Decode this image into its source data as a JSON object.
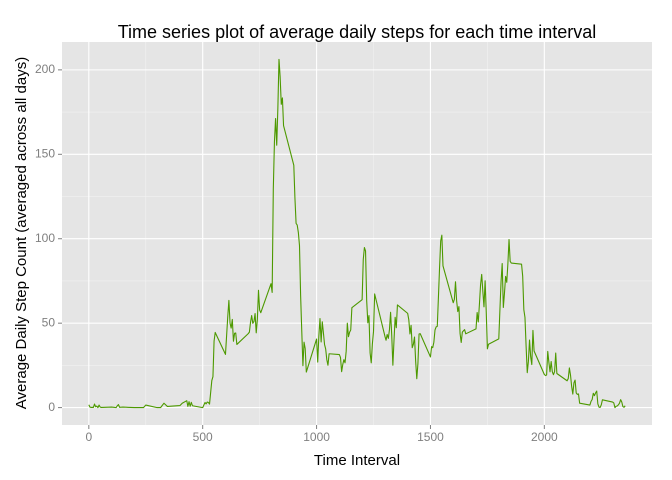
{
  "chart_data": {
    "type": "line",
    "title": "Time series plot of average daily steps for each time interval",
    "x_label": "Time Interval",
    "y_label": "Average Daily Step Count (averaged across all days)",
    "xlim": [
      -117.75,
      2472.75
    ],
    "ylim": [
      -10.3,
      216.5
    ],
    "xticks": [
      0,
      500,
      1000,
      1500,
      2000
    ],
    "yticks": [
      0,
      50,
      100,
      150,
      200
    ],
    "grid": true,
    "series": [
      {
        "color": "#4d9900",
        "x": [
          0,
          5,
          10,
          15,
          20,
          25,
          30,
          35,
          40,
          45,
          50,
          55,
          100,
          110,
          120,
          125,
          130,
          135,
          150,
          200,
          230,
          240,
          250,
          300,
          315,
          330,
          345,
          400,
          410,
          430,
          435,
          440,
          445,
          450,
          455,
          500,
          510,
          515,
          520,
          525,
          530,
          540,
          545,
          550,
          555,
          600,
          610,
          615,
          620,
          625,
          630,
          635,
          640,
          645,
          650,
          700,
          705,
          710,
          715,
          720,
          725,
          730,
          735,
          740,
          745,
          750,
          755,
          800,
          805,
          810,
          815,
          820,
          825,
          830,
          835,
          840,
          845,
          850,
          855,
          900,
          905,
          910,
          915,
          920,
          925,
          930,
          935,
          940,
          945,
          950,
          955,
          1000,
          1005,
          1010,
          1015,
          1020,
          1025,
          1030,
          1035,
          1040,
          1045,
          1050,
          1055,
          1100,
          1105,
          1110,
          1115,
          1120,
          1125,
          1130,
          1135,
          1140,
          1145,
          1150,
          1155,
          1200,
          1205,
          1210,
          1215,
          1220,
          1225,
          1230,
          1235,
          1240,
          1245,
          1250,
          1255,
          1300,
          1305,
          1310,
          1315,
          1320,
          1325,
          1330,
          1335,
          1340,
          1345,
          1350,
          1355,
          1400,
          1405,
          1410,
          1415,
          1420,
          1425,
          1430,
          1435,
          1440,
          1445,
          1450,
          1455,
          1500,
          1505,
          1510,
          1515,
          1520,
          1525,
          1530,
          1535,
          1540,
          1545,
          1550,
          1555,
          1600,
          1605,
          1610,
          1615,
          1620,
          1625,
          1630,
          1635,
          1640,
          1645,
          1650,
          1655,
          1700,
          1705,
          1710,
          1715,
          1720,
          1725,
          1730,
          1735,
          1740,
          1745,
          1750,
          1755,
          1800,
          1805,
          1810,
          1815,
          1820,
          1825,
          1830,
          1835,
          1840,
          1845,
          1850,
          1855,
          1900,
          1905,
          1910,
          1915,
          1920,
          1925,
          1930,
          1935,
          1940,
          1945,
          1950,
          1955,
          2000,
          2005,
          2010,
          2015,
          2020,
          2025,
          2030,
          2035,
          2040,
          2045,
          2050,
          2055,
          2100,
          2105,
          2110,
          2115,
          2120,
          2125,
          2130,
          2135,
          2140,
          2145,
          2150,
          2155,
          2200,
          2205,
          2210,
          2215,
          2220,
          2225,
          2230,
          2235,
          2240,
          2245,
          2250,
          2255,
          2300,
          2305,
          2310,
          2315,
          2320,
          2325,
          2330,
          2335,
          2340,
          2345,
          2350,
          2355
        ],
        "values": [
          1.7,
          0.3,
          0.1,
          0.2,
          0.1,
          2.1,
          0.5,
          0.9,
          0,
          1.5,
          0.3,
          0.1,
          0.3,
          0.2,
          0,
          1.1,
          1.8,
          0.2,
          0.3,
          0,
          0,
          0,
          1.5,
          0,
          0,
          2.6,
          0.7,
          1.2,
          2.6,
          4.1,
          0.7,
          3.5,
          0.8,
          3.1,
          1.1,
          0,
          3.0,
          2.2,
          3.3,
          3.0,
          2.1,
          16,
          18.3,
          39.5,
          44.5,
          31.5,
          53.8,
          63.5,
          50,
          47.1,
          52.2,
          39.3,
          44,
          44.2,
          37.4,
          43.8,
          44.7,
          50.5,
          54.5,
          49.9,
          50.98,
          55.7,
          44.3,
          52.3,
          69.5,
          57.8,
          56.2,
          73.4,
          68.2,
          129.4,
          157.5,
          171.2,
          155.4,
          177.3,
          206.2,
          195.9,
          179.6,
          183.4,
          167,
          143.5,
          124,
          109.1,
          108.1,
          103.7,
          95.97,
          66.2,
          45.2,
          24.8,
          38.75,
          34.98,
          21.06,
          40.6,
          26.98,
          42.4,
          52.7,
          38.9,
          50.8,
          44.3,
          37.4,
          34.7,
          28.3,
          25.1,
          31.9,
          31.4,
          29.7,
          21.3,
          25.5,
          28.4,
          26.5,
          33.4,
          49.98,
          42.0,
          44.6,
          46.0,
          59.2,
          63.9,
          87.7,
          94.8,
          92.8,
          63.4,
          50.2,
          54.5,
          32.4,
          26.5,
          37.7,
          45.1,
          67.3,
          42.3,
          39.9,
          43.3,
          40.98,
          46.2,
          56.4,
          42.8,
          25.1,
          39.97,
          53.5,
          47.3,
          60.8,
          55.8,
          51.96,
          43.6,
          48.7,
          35.5,
          37.5,
          41.8,
          27.5,
          17.1,
          26.1,
          43.6,
          43.8,
          30.0,
          36.1,
          35.5,
          38.8,
          45.96,
          47.8,
          48.1,
          65.3,
          82.9,
          98.7,
          102.1,
          83.96,
          62.1,
          64.1,
          74.5,
          63.2,
          56.9,
          59.8,
          43.9,
          38.6,
          44.7,
          45.5,
          46.2,
          43.7,
          46.6,
          56.3,
          50.7,
          61.2,
          72.7,
          78.9,
          68.9,
          59.7,
          75.1,
          56.5,
          34.8,
          37.5,
          40.7,
          58.0,
          74.7,
          85.3,
          59.3,
          67.8,
          77.7,
          74.2,
          85.3,
          99.5,
          86.6,
          85.6,
          84.9,
          77.8,
          58.0,
          53.4,
          36.3,
          20.7,
          27.4,
          40.0,
          30.2,
          25.5,
          45.7,
          33.5,
          19.6,
          19.0,
          19.3,
          33.3,
          26.8,
          21.2,
          27.3,
          21.3,
          19.5,
          21.3,
          32.3,
          20.2,
          15.9,
          17.2,
          23.5,
          19.2,
          12.5,
          8.0,
          14.7,
          16.3,
          8.7,
          7.8,
          8.1,
          2.6,
          1.5,
          3.7,
          4.8,
          8.5,
          7.1,
          8.7,
          9.8,
          2.2,
          0.3,
          0.1,
          1.6,
          4.6,
          3.3,
          2.8,
          0,
          0.8,
          0.96,
          1.6,
          2.6,
          4.7,
          3.3,
          0.6,
          0.2,
          1.1
        ]
      }
    ]
  }
}
